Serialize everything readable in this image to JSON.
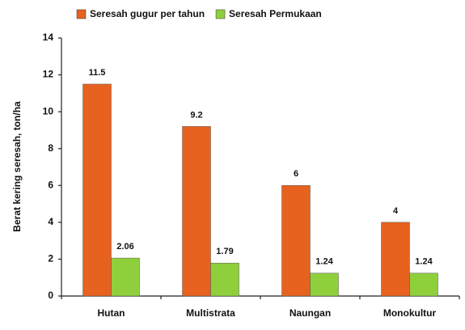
{
  "chart_data": {
    "type": "bar",
    "y_label": "Berat kering seresah, ton/ha",
    "categories": [
      "Hutan",
      "Multistrata",
      "Naungan",
      "Monokultur"
    ],
    "series": [
      {
        "name": "Seresah gugur per tahun",
        "color": "#e8621f",
        "values": [
          11.5,
          9.2,
          6,
          4
        ]
      },
      {
        "name": "Seresah Permukaan",
        "color": "#8fcf3c",
        "values": [
          2.06,
          1.79,
          1.24,
          1.24
        ]
      }
    ],
    "ylim": [
      0,
      14
    ],
    "yticks": [
      0,
      2,
      4,
      6,
      8,
      10,
      12,
      14
    ],
    "grid": false
  }
}
